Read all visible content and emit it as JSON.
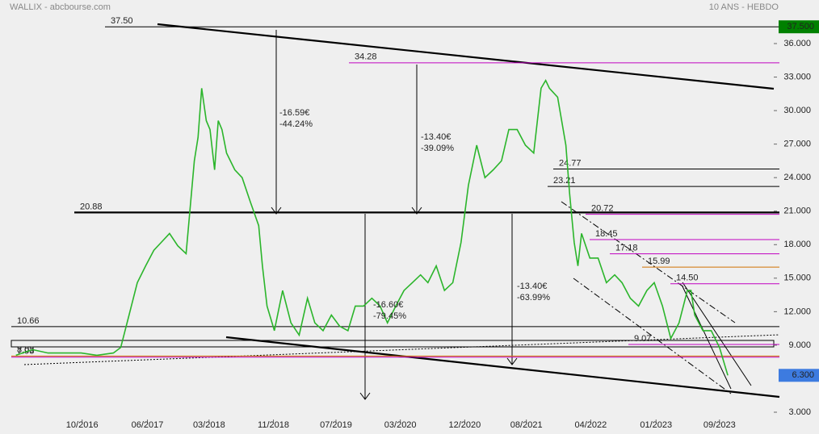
{
  "chart_data": {
    "type": "line",
    "title": "WALLIX - abcbourse.com",
    "subtitle": "10 ANS - HEBDO",
    "color": "#2bb52b",
    "x": [
      2016.03,
      2016.21,
      2016.38,
      2016.56,
      2016.74,
      2016.91,
      2017.09,
      2017.17,
      2017.26,
      2017.35,
      2017.44,
      2017.53,
      2017.61,
      2017.7,
      2017.79,
      2017.88,
      2017.97,
      2018.01,
      2018.05,
      2018.1,
      2018.14,
      2018.19,
      2018.23,
      2018.27,
      2018.32,
      2018.41,
      2018.49,
      2018.58,
      2018.67,
      2018.71,
      2018.76,
      2018.84,
      2018.93,
      2019.02,
      2019.11,
      2019.2,
      2019.28,
      2019.37,
      2019.46,
      2019.55,
      2019.64,
      2019.72,
      2019.81,
      2019.9,
      2019.99,
      2020.07,
      2020.16,
      2020.25,
      2020.34,
      2020.43,
      2020.51,
      2020.6,
      2020.69,
      2020.78,
      2020.87,
      2020.95,
      2021.04,
      2021.13,
      2021.22,
      2021.31,
      2021.39,
      2021.48,
      2021.57,
      2021.66,
      2021.74,
      2021.79,
      2021.83,
      2021.92,
      2022.01,
      2022.05,
      2022.1,
      2022.14,
      2022.18,
      2022.27,
      2022.36,
      2022.45,
      2022.54,
      2022.62,
      2022.71,
      2022.8,
      2022.89,
      2022.97,
      2023.06,
      2023.15,
      2023.24,
      2023.33,
      2023.37,
      2023.41,
      2023.5,
      2023.59,
      2023.68,
      2023.77
    ],
    "values": [
      8.1,
      8.6,
      8.3,
      8.3,
      8.3,
      8.1,
      8.3,
      8.8,
      11.7,
      14.6,
      16.1,
      17.5,
      18.2,
      19.0,
      17.9,
      17.2,
      25.5,
      27.6,
      32.0,
      29.1,
      28.3,
      24.7,
      29.1,
      28.3,
      26.2,
      24.7,
      24.0,
      21.8,
      19.7,
      16.1,
      12.5,
      10.3,
      13.9,
      11.0,
      9.9,
      13.2,
      11.0,
      10.3,
      11.7,
      10.7,
      10.3,
      12.5,
      12.5,
      13.2,
      12.5,
      11.0,
      12.5,
      13.9,
      14.6,
      15.3,
      14.6,
      16.1,
      13.9,
      14.6,
      18.2,
      23.3,
      26.9,
      24.0,
      24.7,
      25.5,
      28.3,
      28.3,
      26.9,
      26.2,
      32.0,
      32.7,
      32.0,
      31.2,
      26.9,
      22.6,
      18.2,
      16.1,
      19.0,
      16.8,
      16.8,
      14.6,
      15.3,
      14.6,
      13.2,
      12.5,
      13.9,
      14.6,
      12.5,
      9.6,
      11.0,
      13.9,
      13.9,
      11.7,
      10.3,
      10.3,
      8.8,
      6.3
    ],
    "xlim": [
      2015.98,
      2024.27
    ],
    "xticks": [
      {
        "value": 2016.75,
        "label": "10/2016"
      },
      {
        "value": 2017.46,
        "label": "06/2017"
      },
      {
        "value": 2018.13,
        "label": "03/2018"
      },
      {
        "value": 2018.83,
        "label": "11/2018"
      },
      {
        "value": 2019.51,
        "label": "07/2019"
      },
      {
        "value": 2020.21,
        "label": "03/2020"
      },
      {
        "value": 2020.91,
        "label": "12/2020"
      },
      {
        "value": 2021.58,
        "label": "08/2021"
      },
      {
        "value": 2022.28,
        "label": "04/2022"
      },
      {
        "value": 2022.99,
        "label": "01/2023"
      },
      {
        "value": 2023.68,
        "label": "09/2023"
      }
    ],
    "ylim": [
      2.35,
      38.6
    ],
    "yticks": [
      {
        "value": 3,
        "label": "3.000"
      },
      {
        "value": 9,
        "label": "9.000"
      },
      {
        "value": 12,
        "label": "12.000"
      },
      {
        "value": 15,
        "label": "15.000"
      },
      {
        "value": 18,
        "label": "18.000"
      },
      {
        "value": 21,
        "label": "21.000"
      },
      {
        "value": 24,
        "label": "24.000"
      },
      {
        "value": 27,
        "label": "27.000"
      },
      {
        "value": 30,
        "label": "30.000"
      },
      {
        "value": 33,
        "label": "33.000"
      },
      {
        "value": 36,
        "label": "36.000"
      }
    ],
    "levels": [
      {
        "value": 37.5,
        "label": "37.50",
        "color": "#000000"
      },
      {
        "value": 34.28,
        "label": "34.28",
        "color": "#c000c0"
      },
      {
        "value": 24.77,
        "label": "24.77",
        "color": "#000000"
      },
      {
        "value": 23.21,
        "label": "23.21",
        "color": "#000000"
      },
      {
        "value": 20.88,
        "label": "20.88",
        "color": "#000000"
      },
      {
        "value": 20.72,
        "label": "20.72",
        "color": "#c000c0"
      },
      {
        "value": 18.45,
        "label": "18.45",
        "color": "#c000c0"
      },
      {
        "value": 17.18,
        "label": "17.18",
        "color": "#c000c0"
      },
      {
        "value": 15.99,
        "label": "15.99",
        "color": "#d07000"
      },
      {
        "value": 14.5,
        "label": "14.50",
        "color": "#c000c0"
      },
      {
        "value": 10.66,
        "label": "10.66",
        "color": "#000000"
      },
      {
        "value": 9.07,
        "label": "9.07",
        "color": "#c000c0"
      },
      {
        "value": 8.03,
        "label": "8.03",
        "color": "#d07000"
      },
      {
        "value": 7.93,
        "label": "7.93",
        "color": "#c000c0"
      }
    ],
    "annotations": [
      {
        "lines": [
          "-16.59€",
          "-44.24%"
        ]
      },
      {
        "lines": [
          "-13.40€",
          "-39.09%"
        ]
      },
      {
        "lines": [
          "-16.60€",
          "-79.45%"
        ]
      },
      {
        "lines": [
          "-13.40€",
          "-63.99%"
        ]
      }
    ],
    "high_marker": {
      "value": 37.5,
      "label": "37.500",
      "color": "#008000"
    },
    "last_marker": {
      "value": 6.3,
      "label": "6.300",
      "color": "#3d7be0"
    }
  }
}
